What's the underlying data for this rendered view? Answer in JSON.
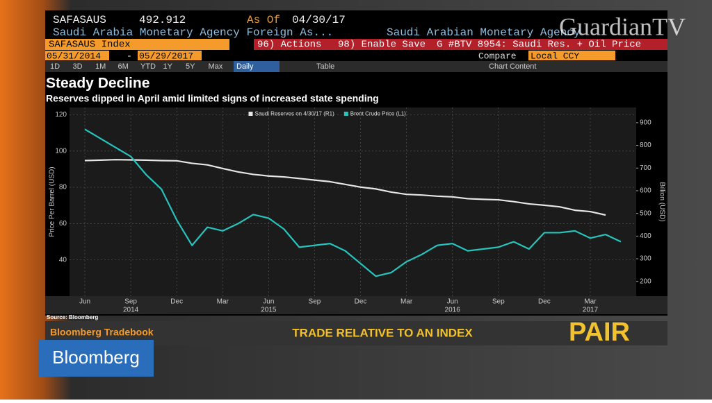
{
  "screen": {
    "ticker": "SAFASAUS",
    "last_value": "492.912",
    "as_of_label": "As Of",
    "as_of_date": "04/30/17",
    "security_name": "Saudi Arabia Monetary Agency Foreign As...",
    "issuer": "Saudi Arabian Monetary Agency",
    "index_label": "SAFASAUS Index",
    "actions": "96) Actions",
    "enable_save": "98) Enable Save",
    "chart_id": "G #BTV 8954: Saudi Res. + Oil Price",
    "start_date": "05/31/2014",
    "date_sep": "-",
    "end_date": "05/29/2017",
    "compare": "Compare",
    "currency": "Local CCY",
    "periods": [
      "1D",
      "3D",
      "1M",
      "6M",
      "YTD",
      "1Y",
      "5Y",
      "Max"
    ],
    "frequency": "Daily",
    "table": "Table",
    "chart_content": "Chart Content",
    "source": "Source: Bloomberg",
    "banner_brand": "Bloomberg Tradebook",
    "banner_text": "TRADE RELATIVE TO AN INDEX",
    "banner_word": "PAIR",
    "logo": "Bloomberg",
    "watermark": "GuardianTV"
  },
  "chart_data": {
    "type": "line",
    "title": "Steady Decline",
    "subtitle": "Reserves dipped in April amid limited signs of increased state spending",
    "y_label": "Price Per Barrel (USD)",
    "y2_label": "Billion (USD)",
    "x": [
      "2014-06",
      "2014-07",
      "2014-08",
      "2014-09",
      "2014-10",
      "2014-11",
      "2014-12",
      "2015-01",
      "2015-02",
      "2015-03",
      "2015-04",
      "2015-05",
      "2015-06",
      "2015-07",
      "2015-08",
      "2015-09",
      "2015-10",
      "2015-11",
      "2015-12",
      "2016-01",
      "2016-02",
      "2016-03",
      "2016-04",
      "2016-05",
      "2016-06",
      "2016-07",
      "2016-08",
      "2016-09",
      "2016-10",
      "2016-11",
      "2016-12",
      "2017-01",
      "2017-02",
      "2017-03",
      "2017-04",
      "2017-05"
    ],
    "xlim": [
      "2014-05",
      "2017-06"
    ],
    "xticks": [
      {
        "value": "2014-06",
        "label": "Jun"
      },
      {
        "value": "2014-09",
        "label": "Sep"
      },
      {
        "value": "2014-12",
        "label": "Dec"
      },
      {
        "value": "2015-03",
        "label": "Mar"
      },
      {
        "value": "2015-06",
        "label": "Jun"
      },
      {
        "value": "2015-09",
        "label": "Sep"
      },
      {
        "value": "2015-12",
        "label": "Dec"
      },
      {
        "value": "2016-03",
        "label": "Mar"
      },
      {
        "value": "2016-06",
        "label": "Jun"
      },
      {
        "value": "2016-09",
        "label": "Sep"
      },
      {
        "value": "2016-12",
        "label": "Dec"
      },
      {
        "value": "2017-03",
        "label": "Mar"
      }
    ],
    "year_labels": [
      {
        "value": "2014-09",
        "label": "2014"
      },
      {
        "value": "2015-06",
        "label": "2015"
      },
      {
        "value": "2016-06",
        "label": "2016"
      },
      {
        "value": "2017-03",
        "label": "2017"
      }
    ],
    "ylim": [
      20,
      124
    ],
    "yticks": [
      40,
      60,
      80,
      100,
      120
    ],
    "y2lim": [
      135,
      967
    ],
    "y2ticks": [
      200,
      300,
      400,
      500,
      600,
      700,
      800,
      900
    ],
    "grid": true,
    "legend": "top",
    "series": [
      {
        "name": "Saudi Reserves on 4/30/17 (R1)",
        "color": "#e6e6e6",
        "axis": "y2",
        "values": [
          733,
          735,
          737,
          736,
          735,
          733,
          732,
          721,
          714,
          698,
          683,
          672,
          665,
          661,
          654,
          647,
          640,
          628,
          616,
          608,
          594,
          584,
          581,
          576,
          573,
          565,
          562,
          560,
          552,
          542,
          536,
          529,
          514,
          508,
          492.912,
          null
        ]
      },
      {
        "name": "Brent Crude Price (L1)",
        "color": "#27c4bd",
        "values": [
          112,
          107,
          102,
          97,
          87,
          79,
          62,
          48,
          58,
          56,
          60,
          65,
          63,
          57,
          47,
          48,
          49,
          45,
          38,
          31,
          33,
          39,
          43,
          48,
          49,
          45,
          46,
          47,
          50,
          46,
          55,
          55,
          56,
          52,
          54,
          50
        ]
      }
    ]
  }
}
